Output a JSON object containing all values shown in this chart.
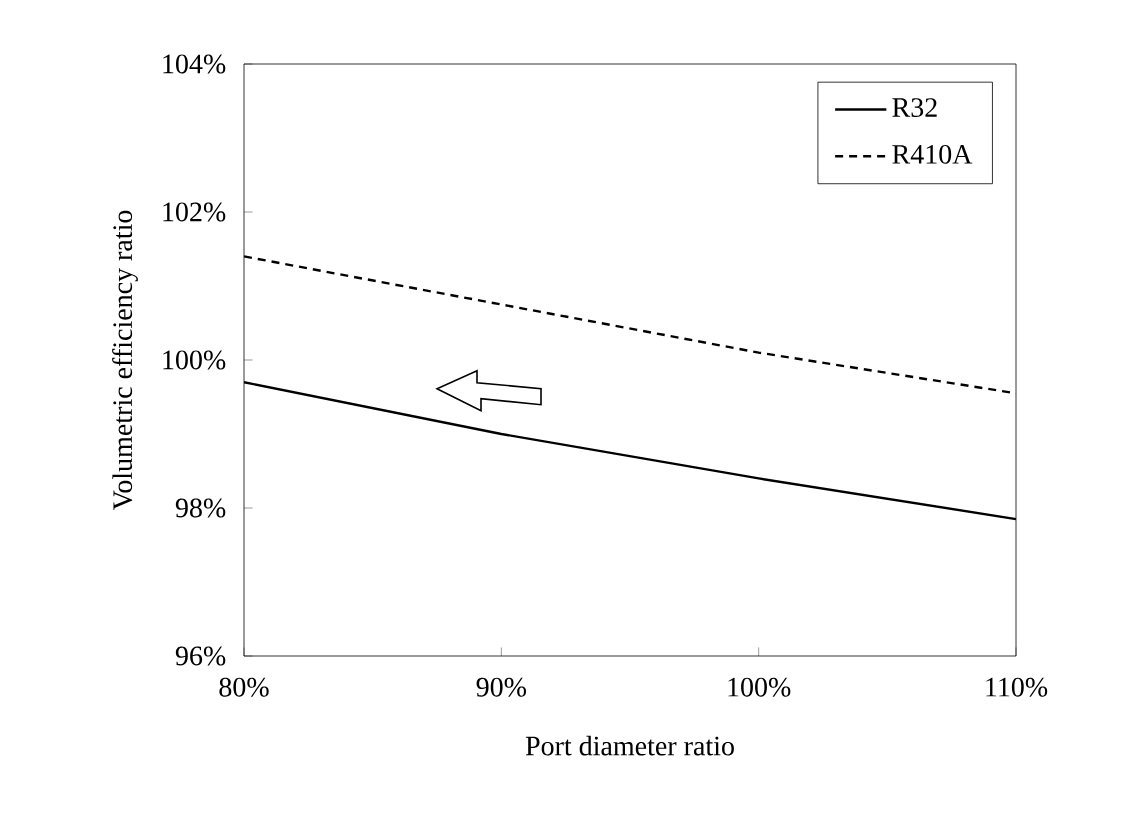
{
  "chart_data": {
    "type": "line",
    "xlabel": "Port diameter ratio",
    "ylabel": "Volumetric efficiency ratio",
    "x": [
      80,
      90,
      100,
      110
    ],
    "series": [
      {
        "name": "R32",
        "color": "#000000",
        "line_style": "solid",
        "values": [
          99.7,
          99.0,
          98.4,
          97.85
        ]
      },
      {
        "name": "R410A",
        "color": "#000000",
        "line_style": "dashed",
        "values": [
          101.4,
          100.75,
          100.1,
          99.55
        ]
      }
    ],
    "xlim": [
      80,
      110
    ],
    "xticks": [
      {
        "value": 80,
        "label": "80%"
      },
      {
        "value": 90,
        "label": "90%"
      },
      {
        "value": 100,
        "label": "100%"
      },
      {
        "value": 110,
        "label": "110%"
      }
    ],
    "ylim": [
      96,
      104
    ],
    "yticks": [
      {
        "value": 96,
        "label": "96%"
      },
      {
        "value": 98,
        "label": "98%"
      },
      {
        "value": 100,
        "label": "100%"
      },
      {
        "value": 102,
        "label": "102%"
      },
      {
        "value": 104,
        "label": "104%"
      }
    ],
    "legend": "top right",
    "grid": false,
    "marker": "none"
  }
}
